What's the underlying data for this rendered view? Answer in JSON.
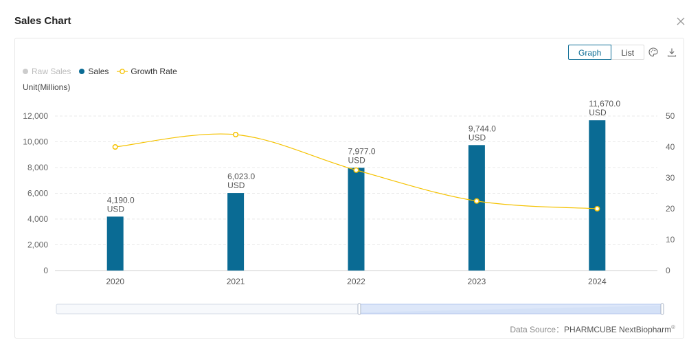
{
  "dialog": {
    "title": "Sales Chart",
    "close_icon": "close-icon"
  },
  "toolbar": {
    "graph_label": "Graph",
    "list_label": "List",
    "palette_icon": "palette-icon",
    "download_icon": "download-icon"
  },
  "legend": {
    "items": [
      {
        "label": "Raw Sales",
        "color": "#cccccc",
        "marker": "dot"
      },
      {
        "label": "Sales",
        "color": "#0a6b94",
        "marker": "dot"
      },
      {
        "label": "Growth Rate",
        "color": "#f5c200",
        "marker": "line-circle"
      }
    ]
  },
  "unit_label": "Unit(Millions)",
  "chart_data": {
    "type": "bar",
    "categories": [
      "2020",
      "2021",
      "2022",
      "2023",
      "2024"
    ],
    "series": [
      {
        "name": "Sales",
        "type": "bar",
        "axis": "left",
        "color": "#0a6b94",
        "values": [
          4190.0,
          6023.0,
          7977.0,
          9744.0,
          11670.0
        ],
        "labels": [
          "4,190.0",
          "6,023.0",
          "7,977.0",
          "9,744.0",
          "11,670.0"
        ],
        "label_unit": "USD"
      },
      {
        "name": "Growth Rate",
        "type": "line",
        "axis": "right",
        "color": "#f5c200",
        "values": [
          40,
          44,
          32.5,
          22.5,
          20
        ]
      }
    ],
    "left_axis": {
      "ylim": [
        0,
        12000
      ],
      "ticks": [
        0,
        2000,
        4000,
        6000,
        8000,
        10000,
        12000
      ],
      "tick_labels": [
        "0",
        "2,000",
        "4,000",
        "6,000",
        "8,000",
        "10,000",
        "12,000"
      ]
    },
    "right_axis": {
      "ylim": [
        0,
        50
      ],
      "ticks": [
        0,
        10,
        20,
        30,
        40,
        50
      ],
      "tick_labels": [
        "0",
        "10",
        "20",
        "30",
        "40",
        "50"
      ]
    },
    "grid": true,
    "legend_position": "top-left",
    "zoom_range": [
      0.5,
      1.0
    ]
  },
  "source": {
    "prefix": "Data Source：",
    "brand": "PHARMCUBE NextBiopharm",
    "mark": "®"
  }
}
